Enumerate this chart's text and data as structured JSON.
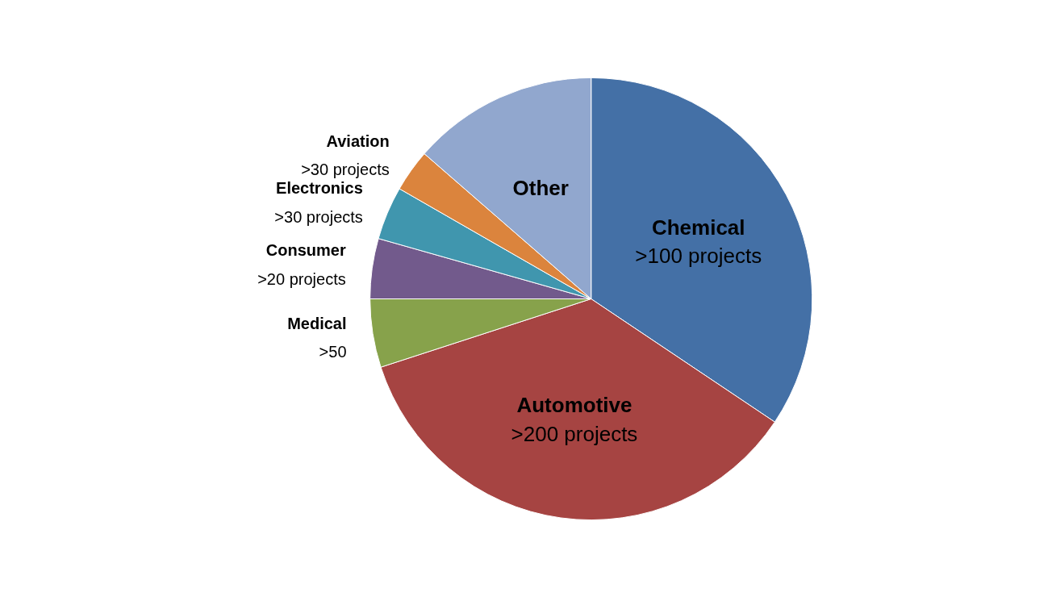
{
  "chart_data": {
    "type": "pie",
    "categories": [
      "Chemical",
      "Automotive",
      "Medical",
      "Consumer",
      "Electronics",
      "Aviation",
      "Other"
    ],
    "values": [
      34.4,
      35.6,
      5.0,
      4.4,
      3.9,
      3.1,
      13.6
    ],
    "colors": [
      "#4470a6",
      "#a64442",
      "#87a24b",
      "#725a8c",
      "#4096ae",
      "#db843d",
      "#91a7ce"
    ],
    "value_labels": [
      ">100 projects",
      ">200 projects",
      ">50",
      ">20 projects",
      ">30 projects",
      ">30 projects",
      null
    ]
  }
}
